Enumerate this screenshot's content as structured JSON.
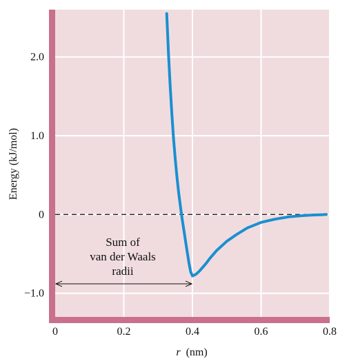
{
  "chart_data": {
    "type": "line",
    "title": "",
    "xlabel_var": "r",
    "xlabel_unit": "(nm)",
    "ylabel": "Energy (kJ/mol)",
    "xlim": [
      0,
      0.8
    ],
    "ylim": [
      -1.3,
      2.6
    ],
    "x_ticks": [
      0,
      0.2,
      0.4,
      0.6,
      0.8
    ],
    "x_tick_labels": [
      "0",
      "0.2",
      "0.4",
      "0.6",
      "0.8"
    ],
    "y_ticks": [
      -1.0,
      0,
      1.0,
      2.0
    ],
    "y_tick_labels": [
      "−1.0",
      "0",
      "1.0",
      "2.0"
    ],
    "grid": true,
    "reference_line": {
      "y": 0,
      "style": "dashed"
    },
    "series": [
      {
        "color": "#1a8fd0",
        "x": [
          0.325,
          0.33,
          0.335,
          0.34,
          0.345,
          0.35,
          0.355,
          0.36,
          0.365,
          0.37,
          0.375,
          0.38,
          0.385,
          0.39,
          0.395,
          0.4,
          0.41,
          0.42,
          0.43,
          0.44,
          0.45,
          0.47,
          0.5,
          0.53,
          0.56,
          0.6,
          0.64,
          0.68,
          0.72,
          0.75,
          0.78,
          0.79
        ],
        "y": [
          2.55,
          2.05,
          1.63,
          1.27,
          0.96,
          0.7,
          0.47,
          0.27,
          0.1,
          -0.06,
          -0.2,
          -0.34,
          -0.48,
          -0.62,
          -0.73,
          -0.78,
          -0.76,
          -0.72,
          -0.67,
          -0.62,
          -0.56,
          -0.46,
          -0.34,
          -0.25,
          -0.17,
          -0.1,
          -0.06,
          -0.03,
          -0.015,
          -0.007,
          -0.002,
          0.0
        ]
      }
    ],
    "annotation": {
      "lines": [
        "Sum of",
        "van der Waals",
        "radii"
      ],
      "arrow_from": [
        0,
        -0.88
      ],
      "arrow_to": [
        0.4,
        -0.88
      ]
    },
    "colors": {
      "plot_background": "#f0dcdf",
      "axis_bar": "#c8708c",
      "grid": "#ffffff",
      "curve": "#1a8fd0"
    }
  }
}
